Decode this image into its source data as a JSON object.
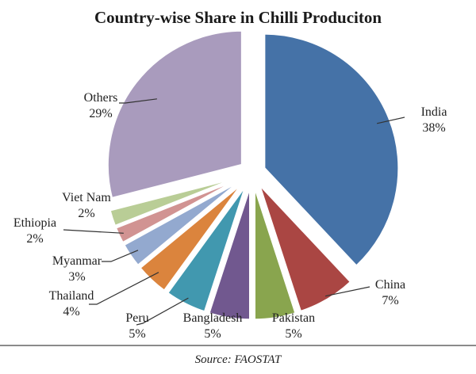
{
  "chart_data": {
    "type": "pie",
    "title": "Country-wise Share in Chilli Produciton",
    "source": "Source: FAOSTAT",
    "exploded": true,
    "categories": [
      "India",
      "China",
      "Pakistan",
      "Bangladesh",
      "Peru",
      "Thailand",
      "Myanmar",
      "Ethiopia",
      "Viet Nam",
      "Others"
    ],
    "values": [
      38,
      7,
      5,
      5,
      5,
      4,
      3,
      2,
      2,
      29
    ],
    "labels": [
      "38%",
      "7%",
      "5%",
      "5%",
      "5%",
      "4%",
      "3%",
      "2%",
      "2%",
      "29%"
    ],
    "colors": [
      "#4572A7",
      "#AA4643",
      "#89A54E",
      "#71588F",
      "#4198AF",
      "#DB843D",
      "#93A9CF",
      "#D19392",
      "#B9CD96",
      "#A99BBD"
    ],
    "legend": "none (data labels with leader lines)"
  },
  "labels": [
    {
      "name": "India",
      "pct": "38%"
    },
    {
      "name": "China",
      "pct": "7%"
    },
    {
      "name": "Pakistan",
      "pct": "5%"
    },
    {
      "name": "Bangladesh",
      "pct": "5%"
    },
    {
      "name": "Peru",
      "pct": "5%"
    },
    {
      "name": "Thailand",
      "pct": "4%"
    },
    {
      "name": "Myanmar",
      "pct": "3%"
    },
    {
      "name": "Ethiopia",
      "pct": "2%"
    },
    {
      "name": "Viet Nam",
      "pct": "2%"
    },
    {
      "name": "Others",
      "pct": "29%"
    }
  ]
}
